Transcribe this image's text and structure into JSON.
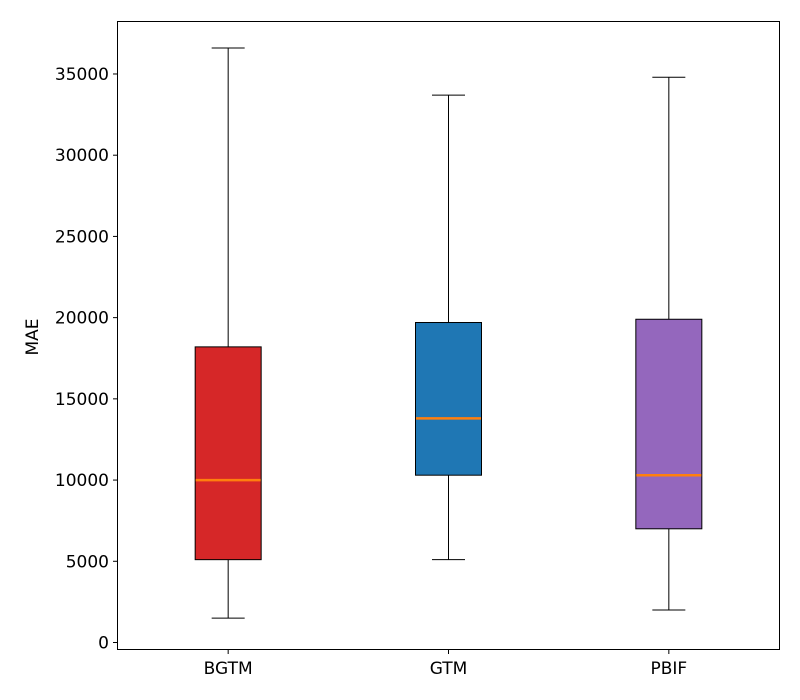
{
  "chart_data": {
    "type": "boxplot",
    "title": "",
    "xlabel": "",
    "ylabel": "MAE",
    "ylim": [
      -400,
      38200
    ],
    "yticks": [
      0,
      5000,
      10000,
      15000,
      20000,
      25000,
      30000,
      35000
    ],
    "ytick_labels": [
      "0",
      "5000",
      "10000",
      "15000",
      "20000",
      "25000",
      "30000",
      "35000"
    ],
    "grid": false,
    "legend": "none",
    "categories": [
      "BGTM",
      "GTM",
      "PBIF"
    ],
    "boxes": [
      {
        "name": "BGTM",
        "whisker_low": 1500,
        "q1": 5100,
        "median": 10000,
        "q3": 18200,
        "whisker_high": 36600,
        "color": "#d62728"
      },
      {
        "name": "GTM",
        "whisker_low": 5100,
        "q1": 10300,
        "median": 13800,
        "q3": 19700,
        "whisker_high": 33700,
        "color": "#1f77b4"
      },
      {
        "name": "PBIF",
        "whisker_low": 2000,
        "q1": 7000,
        "median": 10300,
        "q3": 19900,
        "whisker_high": 34800,
        "color": "#9467bd"
      }
    ],
    "median_color": "#ff7f0e"
  }
}
